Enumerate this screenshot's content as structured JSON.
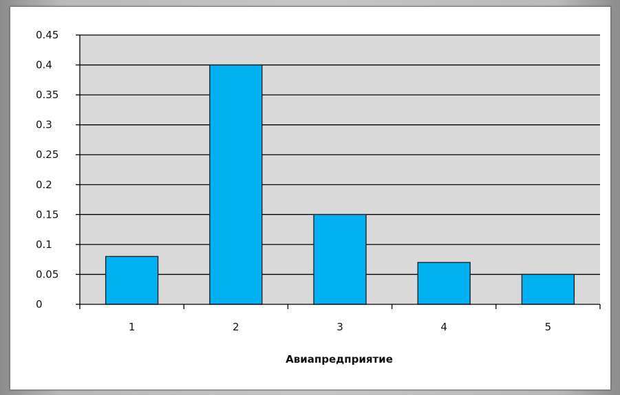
{
  "chart_data": {
    "type": "bar",
    "categories": [
      "1",
      "2",
      "3",
      "4",
      "5"
    ],
    "values": [
      0.08,
      0.4,
      0.15,
      0.07,
      0.05
    ],
    "title": "",
    "xlabel": "Авиапредприятие",
    "ylabel": "",
    "ylim": [
      0,
      0.45
    ],
    "yticks": [
      "0",
      "0.05",
      "0.1",
      "0.15",
      "0.2",
      "0.25",
      "0.3",
      "0.35",
      "0.4",
      "0.45"
    ],
    "grid": true,
    "legend": "none",
    "colors": {
      "bar": "#00b0f0",
      "bar_border": "#1a1a1a",
      "plot_background": "#d9d9d9",
      "gridline": "#000000"
    }
  }
}
